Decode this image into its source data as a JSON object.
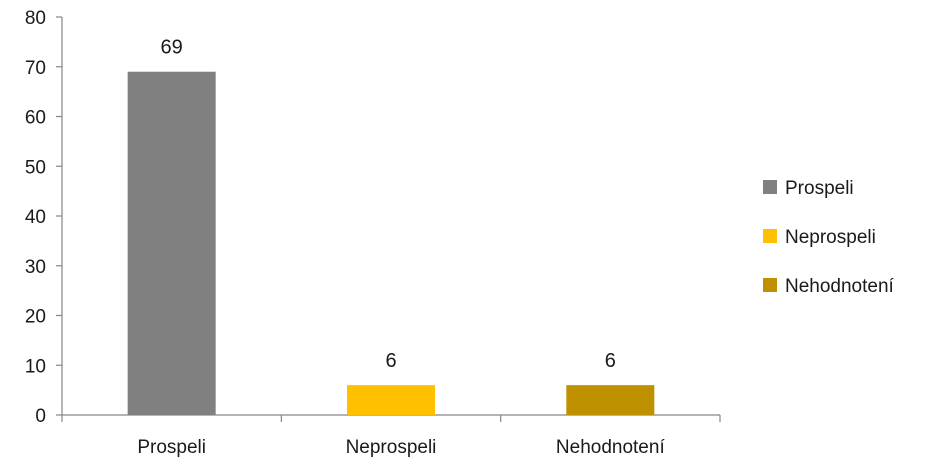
{
  "chart_data": {
    "type": "bar",
    "title": "",
    "xlabel": "",
    "ylabel": "",
    "categories": [
      "Prospeli",
      "Neprospeli",
      "Nehodnotení"
    ],
    "values": [
      69,
      6,
      6
    ],
    "data_labels": [
      "69",
      "6",
      "6"
    ],
    "colors": [
      "#808080",
      "#ffc000",
      "#bf9000"
    ],
    "ylim": [
      0,
      80
    ],
    "yticks": [
      0,
      10,
      20,
      30,
      40,
      50,
      60,
      70,
      80
    ],
    "grid": false,
    "legend": {
      "position": "right",
      "entries": [
        "Prospeli",
        "Neprospeli",
        "Nehodnotení"
      ]
    }
  }
}
